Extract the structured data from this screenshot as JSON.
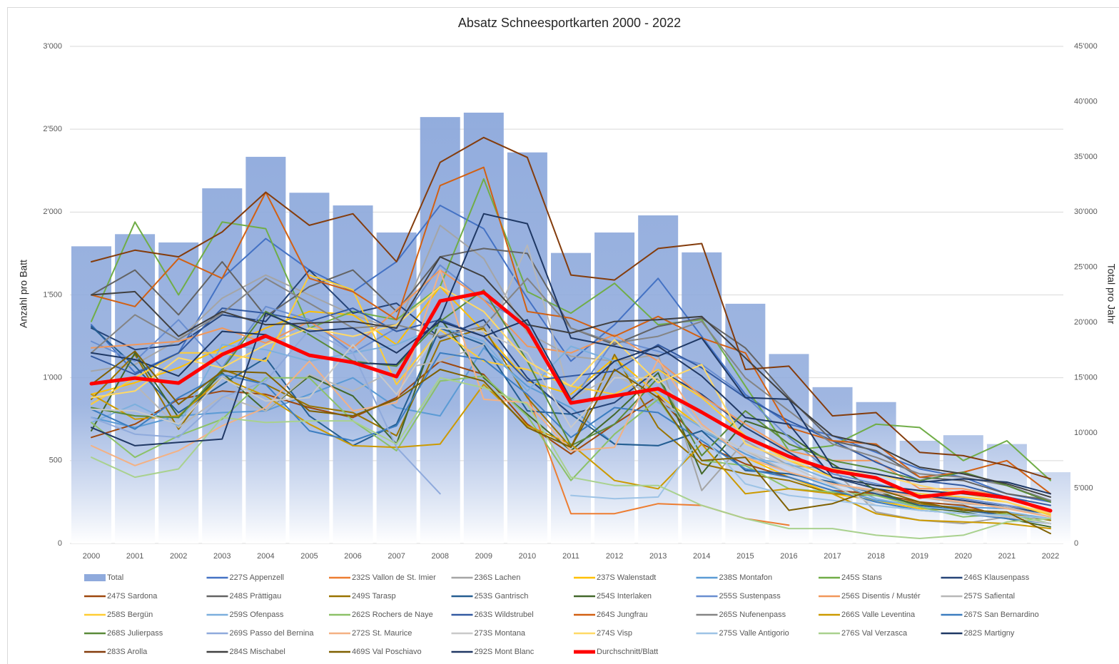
{
  "chart_data": {
    "type": "combo",
    "title": "Absatz Schneesportkarten 2000 - 2022",
    "y_label": "Anzahl pro Batt",
    "y2_label": "Total pro Jahr",
    "categories": [
      "2000",
      "2001",
      "2002",
      "2003",
      "2004",
      "2005",
      "2006",
      "2007",
      "2008",
      "2009",
      "2010",
      "2011",
      "2012",
      "2013",
      "2014",
      "2015",
      "2016",
      "2017",
      "2018",
      "2019",
      "2020",
      "2021",
      "2022"
    ],
    "ylim": [
      0,
      3000
    ],
    "yticks": [
      0,
      500,
      {
        "value": 1000,
        "label": "1'000"
      },
      {
        "value": 1500,
        "label": "1'500"
      },
      {
        "value": 2000,
        "label": "2'000"
      },
      {
        "value": 2500,
        "label": "2'500"
      },
      {
        "value": 3000,
        "label": "3'000"
      }
    ],
    "y2lim": [
      0,
      45000
    ],
    "y2ticks": [
      0,
      {
        "value": 5000,
        "label": "5'000"
      },
      {
        "value": 10000,
        "label": "10'000"
      },
      {
        "value": 15000,
        "label": "15'000"
      },
      {
        "value": 20000,
        "label": "20'000"
      },
      {
        "value": 25000,
        "label": "25'000"
      },
      {
        "value": 30000,
        "label": "30'000"
      },
      {
        "value": 35000,
        "label": "35'000"
      },
      {
        "value": 40000,
        "label": "40'000"
      },
      {
        "value": 45000,
        "label": "45'000"
      }
    ],
    "grid": true,
    "legend": "bottom",
    "series": [
      {
        "name": "Total",
        "type": "bar",
        "axis": "y2",
        "color": "#8faadc",
        "values": [
          26900,
          28000,
          27250,
          32150,
          35000,
          31750,
          30600,
          28150,
          38600,
          39000,
          35400,
          26300,
          28150,
          29700,
          26350,
          21700,
          17150,
          14150,
          12800,
          9300,
          9800,
          9000,
          6450
        ]
      },
      {
        "name": "227S Appenzell",
        "color": "#4472c4",
        "values": [
          1320,
          1030,
          1150,
          1600,
          1840,
          1650,
          1520,
          1700,
          2040,
          1900,
          1480,
          1100,
          1320,
          1600,
          1250,
          900,
          720,
          650,
          550,
          450,
          400,
          300,
          250
        ]
      },
      {
        "name": "232S Vallon de St. Imier",
        "color": "#ed7d31",
        "values": [
          null,
          null,
          null,
          null,
          null,
          null,
          null,
          null,
          null,
          null,
          900,
          180,
          180,
          240,
          230,
          150,
          110,
          null,
          null,
          null,
          null,
          null,
          null
        ]
      },
      {
        "name": "236S Lachen",
        "color": "#a5a5a5",
        "values": [
          1040,
          1080,
          1230,
          1480,
          1620,
          1500,
          1380,
          1290,
          1920,
          1720,
          1270,
          1130,
          1100,
          1140,
          320,
          620,
          470,
          450,
          190,
          140,
          120,
          160,
          120
        ]
      },
      {
        "name": "237S Walenstadt",
        "color": "#ffc000",
        "values": [
          900,
          970,
          1060,
          1180,
          1300,
          1400,
          1380,
          1200,
          1550,
          1280,
          980,
          900,
          1120,
          900,
          700,
          520,
          400,
          300,
          260,
          210,
          200,
          190,
          140
        ]
      },
      {
        "name": "238S Montafon",
        "color": "#5b9bd5",
        "values": [
          760,
          700,
          770,
          790,
          800,
          900,
          1000,
          820,
          770,
          1180,
          950,
          820,
          600,
          590,
          680,
          540,
          430,
          340,
          260,
          230,
          220,
          210,
          180
        ]
      },
      {
        "name": "245S Stans",
        "color": "#70ad47",
        "values": [
          1340,
          1940,
          1500,
          1940,
          1900,
          1300,
          1400,
          1350,
          1550,
          2200,
          1520,
          1390,
          1570,
          1320,
          1350,
          950,
          560,
          590,
          720,
          700,
          500,
          620,
          380
        ]
      },
      {
        "name": "246S Klausenpass",
        "color": "#264478",
        "values": [
          1300,
          1170,
          1200,
          1380,
          1340,
          1650,
          1390,
          1450,
          1240,
          1350,
          1000,
          780,
          850,
          1050,
          900,
          700,
          550,
          400,
          330,
          290,
          260,
          220,
          180
        ]
      },
      {
        "name": "247S Sardona",
        "color": "#9e480e",
        "values": [
          640,
          720,
          870,
          920,
          900,
          820,
          760,
          880,
          1100,
          1020,
          720,
          540,
          720,
          890,
          600,
          480,
          400,
          320,
          300,
          250,
          230,
          160,
          120
        ]
      },
      {
        "name": "248S Prättigau",
        "color": "#636363",
        "values": [
          1500,
          1650,
          1380,
          1700,
          1370,
          1550,
          1650,
          1400,
          1730,
          1780,
          1750,
          1300,
          1200,
          1310,
          1360,
          1180,
          880,
          620,
          560,
          400,
          380,
          300,
          260
        ]
      },
      {
        "name": "249S Tarasp",
        "color": "#997300",
        "values": [
          870,
          1140,
          690,
          1050,
          960,
          830,
          790,
          650,
          1220,
          1300,
          880,
          580,
          1140,
          700,
          480,
          420,
          380,
          300,
          290,
          240,
          210,
          180,
          140
        ]
      },
      {
        "name": "253S Gantrisch",
        "color": "#255e91",
        "values": [
          1310,
          1070,
          790,
          960,
          1120,
          770,
          590,
          720,
          1300,
          1200,
          800,
          780,
          600,
          590,
          680,
          440,
          420,
          370,
          300,
          230,
          200,
          170,
          150
        ]
      },
      {
        "name": "254S Interlaken",
        "color": "#43682b",
        "values": [
          680,
          1150,
          760,
          1030,
          800,
          1010,
          890,
          600,
          1360,
          1000,
          780,
          560,
          780,
          1030,
          420,
          740,
          650,
          480,
          320,
          220,
          190,
          150,
          100
        ]
      },
      {
        "name": "255S Sustenpass",
        "color": "#698ed0",
        "values": [
          1220,
          1100,
          1350,
          1060,
          1430,
          1350,
          1150,
          1300,
          1680,
          1470,
          1320,
          850,
          1230,
          1160,
          1080,
          890,
          640,
          420,
          360,
          300,
          270,
          230,
          190
        ]
      },
      {
        "name": "256S Disentis / Mustér",
        "color": "#f1975a",
        "values": [
          1180,
          1200,
          1220,
          1300,
          1210,
          1340,
          1180,
          1410,
          1650,
          1470,
          1190,
          1150,
          1260,
          1100,
          890,
          720,
          560,
          500,
          500,
          330,
          330,
          280,
          180
        ]
      },
      {
        "name": "257S Safiental",
        "color": "#b7b7b7",
        "values": [
          850,
          960,
          700,
          890,
          800,
          1020,
          920,
          1050,
          1100,
          1200,
          1800,
          870,
          1020,
          870,
          700,
          560,
          430,
          360,
          310,
          280,
          240,
          220,
          160
        ]
      },
      {
        "name": "258S Bergün",
        "color": "#ffcd33",
        "values": [
          840,
          1000,
          1150,
          1150,
          1100,
          1620,
          1530,
          960,
          1290,
          1100,
          1050,
          950,
          900,
          1050,
          880,
          650,
          500,
          400,
          350,
          300,
          280,
          250,
          170
        ]
      },
      {
        "name": "259S Ofenpass",
        "color": "#7cafdd",
        "values": [
          730,
          840,
          710,
          1200,
          1170,
          1100,
          1150,
          1200,
          1310,
          1220,
          920,
          1190,
          1100,
          850,
          700,
          520,
          480,
          380,
          270,
          220,
          200,
          190,
          150
        ]
      },
      {
        "name": "262S Rochers de Naye",
        "color": "#8cc168",
        "values": [
          730,
          520,
          650,
          750,
          1000,
          1000,
          740,
          560,
          980,
          1010,
          770,
          380,
          660,
          870,
          500,
          470,
          330,
          310,
          290,
          220,
          160,
          180,
          120
        ]
      },
      {
        "name": "263S Wildstrubel",
        "color": "#335aa1",
        "values": [
          1130,
          1020,
          1150,
          1420,
          1390,
          1340,
          1420,
          1280,
          1350,
          1250,
          980,
          1010,
          1040,
          1200,
          1060,
          880,
          740,
          620,
          490,
          380,
          350,
          280,
          230
        ]
      },
      {
        "name": "264S Jungfrau",
        "color": "#d26012",
        "values": [
          1500,
          1430,
          1720,
          1600,
          2120,
          1600,
          1520,
          1350,
          2160,
          2270,
          1400,
          1360,
          1250,
          1370,
          1240,
          1150,
          700,
          620,
          600,
          400,
          430,
          500,
          300
        ]
      },
      {
        "name": "265S Nufenenpass",
        "color": "#848484",
        "values": [
          1150,
          1380,
          1230,
          1390,
          1600,
          1450,
          1300,
          1320,
          1250,
          1310,
          1600,
          1300,
          1210,
          1250,
          1340,
          1000,
          800,
          600,
          520,
          420,
          400,
          350,
          260
        ]
      },
      {
        "name": "266S Valle Leventina",
        "color": "#cc9a00",
        "values": [
          900,
          750,
          770,
          1000,
          890,
          720,
          590,
          580,
          600,
          960,
          710,
          600,
          380,
          330,
          600,
          300,
          330,
          300,
          180,
          140,
          130,
          120,
          90
        ]
      },
      {
        "name": "267S San Bernardino",
        "color": "#3c7dc0",
        "values": [
          810,
          690,
          880,
          1020,
          960,
          680,
          620,
          710,
          1150,
          1110,
          900,
          640,
          820,
          790,
          620,
          450,
          400,
          320,
          250,
          200,
          180,
          150,
          120
        ]
      },
      {
        "name": "268S Julierpass",
        "color": "#5a8a39",
        "values": [
          820,
          770,
          760,
          1050,
          1400,
          1260,
          1100,
          1070,
          1340,
          1530,
          1100,
          590,
          720,
          1000,
          530,
          800,
          600,
          500,
          450,
          380,
          430,
          350,
          250
        ]
      },
      {
        "name": "269S Passo del Bernina",
        "color": "#8faadc",
        "values": [
          760,
          660,
          640,
          880,
          980,
          1290,
          1150,
          580,
          300,
          null,
          null,
          null,
          null,
          null,
          null,
          null,
          null,
          null,
          null,
          null,
          null,
          null,
          null
        ]
      },
      {
        "name": "272S St. Maurice",
        "color": "#f4b183",
        "values": [
          590,
          470,
          560,
          710,
          820,
          1100,
          800,
          850,
          1650,
          870,
          850,
          560,
          580,
          1110,
          720,
          520,
          430,
          360,
          320,
          280,
          250,
          210,
          160
        ]
      },
      {
        "name": "273S Montana",
        "color": "#c9c9c9",
        "values": [
          810,
          800,
          720,
          1000,
          860,
          880,
          1200,
          900,
          1300,
          1280,
          1150,
          700,
          1000,
          1000,
          700,
          560,
          470,
          350,
          230,
          200,
          180,
          160,
          120
        ]
      },
      {
        "name": "274S Visp",
        "color": "#ffd966",
        "values": [
          880,
          920,
          1120,
          1060,
          1200,
          1300,
          1250,
          1320,
          1550,
          1400,
          1100,
          950,
          1230,
          970,
          1080,
          600,
          500,
          450,
          420,
          350,
          300,
          250,
          180
        ]
      },
      {
        "name": "275S Valle Antigorio",
        "color": "#9dc3e6",
        "values": [
          null,
          null,
          null,
          null,
          null,
          null,
          null,
          null,
          null,
          null,
          null,
          290,
          270,
          280,
          650,
          360,
          290,
          260,
          230,
          200,
          180,
          170,
          150
        ]
      },
      {
        "name": "276S Val Verzasca",
        "color": "#a9d18e",
        "values": [
          520,
          400,
          450,
          760,
          730,
          740,
          740,
          600,
          1000,
          940,
          840,
          400,
          350,
          350,
          230,
          150,
          90,
          90,
          50,
          30,
          50,
          130,
          150
        ]
      },
      {
        "name": "282S Martigny",
        "color": "#1f3864",
        "values": [
          1150,
          1110,
          1010,
          1280,
          1260,
          1130,
          1090,
          1080,
          1360,
          1990,
          1930,
          1240,
          1190,
          1130,
          1240,
          880,
          870,
          460,
          420,
          370,
          390,
          370,
          300
        ]
      },
      {
        "name": "283S Arolla",
        "color": "#843c0c",
        "values": [
          1700,
          1770,
          1730,
          1880,
          2120,
          1920,
          1990,
          1700,
          2300,
          2450,
          2330,
          1620,
          1590,
          1780,
          1810,
          1050,
          1070,
          770,
          790,
          550,
          530,
          470,
          390
        ]
      },
      {
        "name": "284S Mischabel",
        "color": "#404040",
        "values": [
          1500,
          1520,
          1250,
          1400,
          1320,
          1330,
          1340,
          1300,
          1730,
          1610,
          1320,
          1270,
          1340,
          1350,
          1370,
          1120,
          870,
          650,
          590,
          460,
          420,
          360,
          280
        ]
      },
      {
        "name": "469S Val Poschiavo",
        "color": "#7f6000",
        "values": [
          960,
          1160,
          840,
          1040,
          1030,
          800,
          770,
          870,
          1050,
          980,
          700,
          580,
          1050,
          880,
          500,
          520,
          200,
          240,
          330,
          250,
          200,
          190,
          60
        ]
      },
      {
        "name": "292S Mont Blanc",
        "color": "#203864",
        "values": [
          700,
          590,
          610,
          630,
          1390,
          1280,
          1300,
          1150,
          1340,
          1250,
          1350,
          870,
          1100,
          1190,
          1010,
          760,
          720,
          400,
          350,
          320,
          300,
          270,
          200
        ]
      },
      {
        "name": "Durchschnitt/Blatt",
        "color": "#ff0000",
        "values": [
          964,
          998,
          968,
          1140,
          1252,
          1136,
          1093,
          1007,
          1463,
          1515,
          1300,
          848,
          891,
          934,
          792,
          641,
          525,
          439,
          396,
          280,
          310,
          275,
          198
        ]
      }
    ]
  }
}
